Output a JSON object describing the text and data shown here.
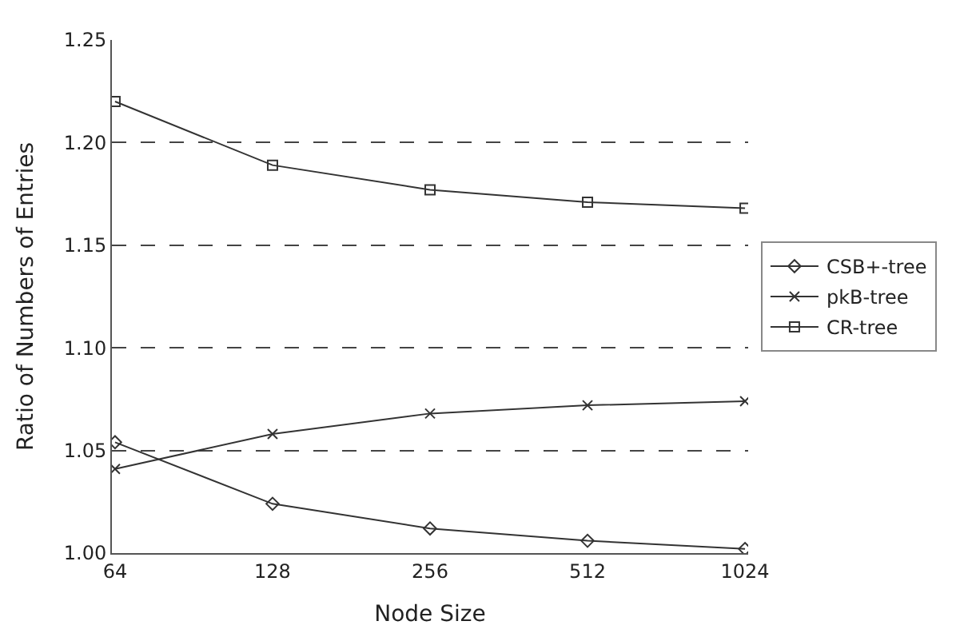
{
  "chart_data": {
    "type": "line",
    "xlabel": "Node Size",
    "ylabel": "Ratio of Numbers of Entries",
    "categories": [
      "64",
      "128",
      "256",
      "512",
      "1024"
    ],
    "series": [
      {
        "name": "CSB+-tree",
        "color": "#333333",
        "marker": "diamond",
        "values": [
          1.054,
          1.024,
          1.012,
          1.006,
          1.002
        ]
      },
      {
        "name": "pkB-tree",
        "color": "#333333",
        "marker": "cross",
        "values": [
          1.041,
          1.058,
          1.068,
          1.072,
          1.074
        ]
      },
      {
        "name": "CR-tree",
        "color": "#333333",
        "marker": "square",
        "values": [
          1.22,
          1.189,
          1.177,
          1.171,
          1.168
        ]
      }
    ],
    "ylim": [
      1.0,
      1.25
    ],
    "yticks": [
      {
        "value": 1.0,
        "label": "1.00"
      },
      1.05,
      {
        "value": 1.1,
        "label": "1.10"
      },
      1.15,
      {
        "value": 1.2,
        "label": "1.20"
      },
      1.25
    ],
    "grid": "y",
    "legend": "right",
    "line_style": "solid"
  }
}
